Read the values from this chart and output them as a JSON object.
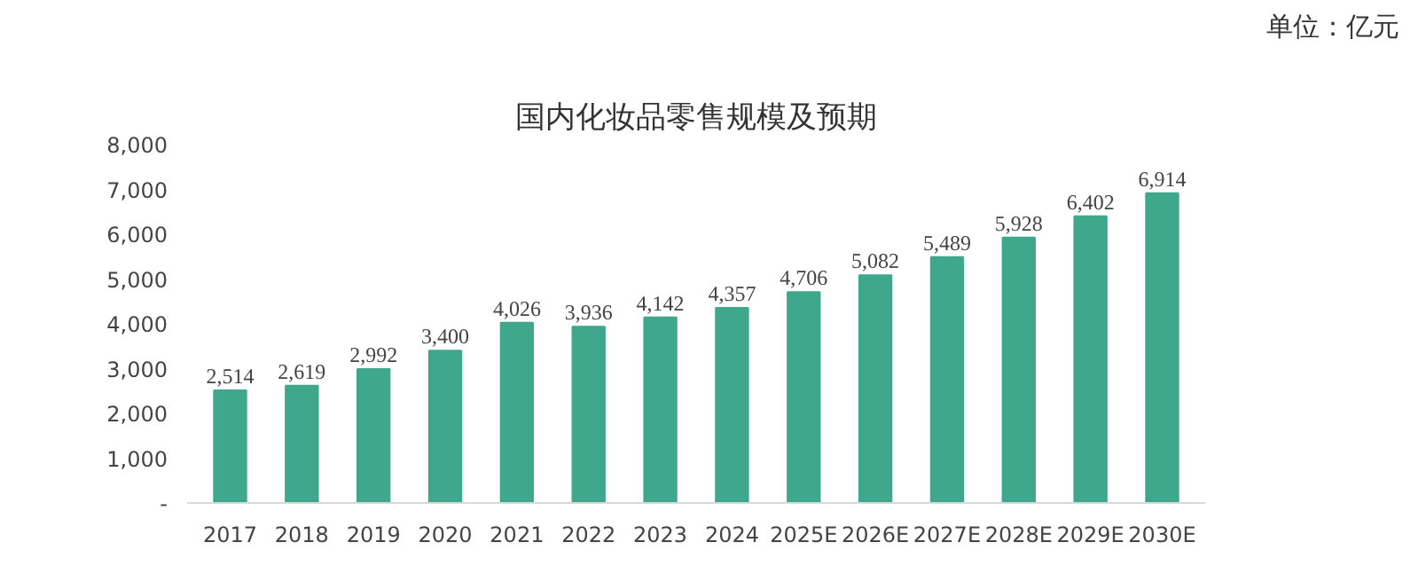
{
  "chart_data": {
    "type": "bar",
    "title": "国内化妆品零售规模及预期",
    "annotations": [
      "单位：亿元"
    ],
    "categories": [
      "2017",
      "2018",
      "2019",
      "2020",
      "2021",
      "2022",
      "2023",
      "2024",
      "2025E",
      "2026E",
      "2027E",
      "2028E",
      "2029E",
      "2030E"
    ],
    "values": [
      2514,
      2619,
      2992,
      3400,
      4026,
      3936,
      4142,
      4357,
      4706,
      5082,
      5489,
      5928,
      6402,
      6914
    ],
    "color": "#3fa88c",
    "ylim": [
      0,
      8000
    ],
    "yticks": [
      {
        "value": 0,
        "label": "-"
      },
      {
        "value": 1000,
        "label": "1,000"
      },
      {
        "value": 2000,
        "label": "2,000"
      },
      {
        "value": 3000,
        "label": "3,000"
      },
      {
        "value": 4000,
        "label": "4,000"
      },
      {
        "value": 5000,
        "label": "5,000"
      },
      {
        "value": 6000,
        "label": "6,000"
      },
      {
        "value": 7000,
        "label": "7,000"
      },
      {
        "value": 8000,
        "label": "8,000"
      }
    ],
    "value_labels": [
      "2,514",
      "2,619",
      "2,992",
      "3,400",
      "4,026",
      "3,936",
      "4,142",
      "4,357",
      "4,706",
      "5,082",
      "5,489",
      "5,928",
      "6,402",
      "6,914"
    ],
    "grid": false
  }
}
